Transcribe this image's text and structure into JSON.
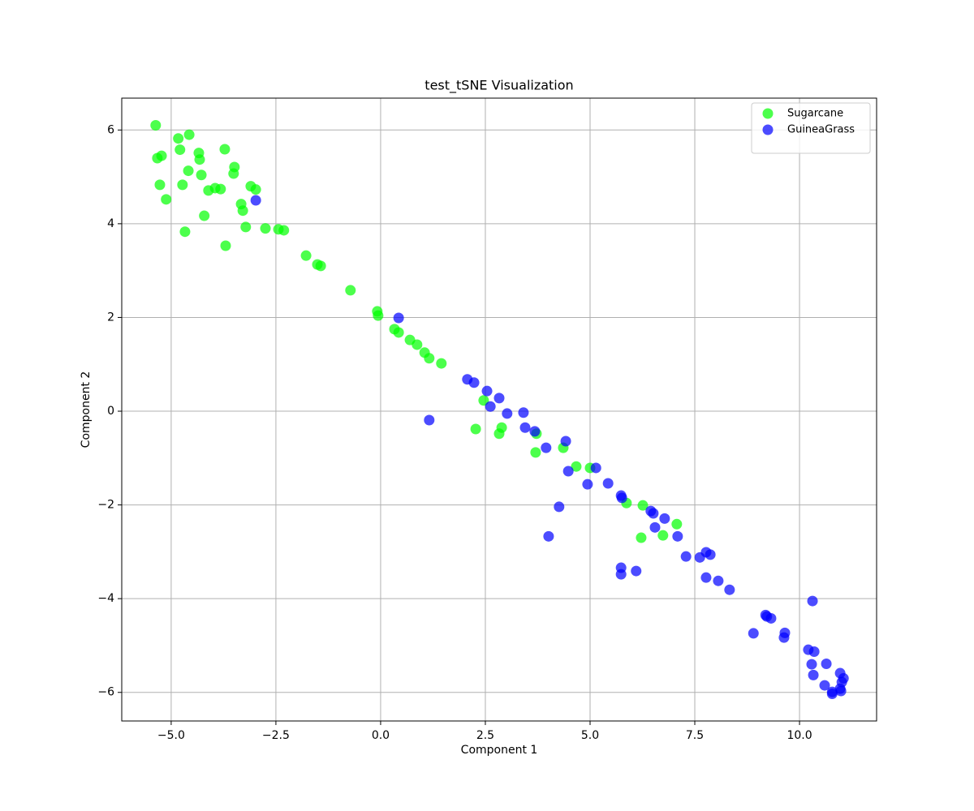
{
  "chart_data": {
    "type": "scatter",
    "title": "test_tSNE Visualization",
    "x_label": "Component 1",
    "y_label": "Component 2",
    "xlim": [
      -6.18,
      11.84
    ],
    "ylim": [
      -6.61,
      6.68
    ],
    "xticks": [
      {
        "value": -5,
        "label": "−5.0"
      },
      {
        "value": -2.5,
        "label": "−2.5"
      },
      {
        "value": 0,
        "label": "0.0"
      },
      2.5,
      {
        "value": 5,
        "label": "5.0"
      },
      7.5,
      {
        "value": 10,
        "label": "10.0"
      }
    ],
    "yticks": [
      {
        "value": -6,
        "label": "−6"
      },
      {
        "value": -4,
        "label": "−4"
      },
      {
        "value": -2,
        "label": "−2"
      },
      0,
      2,
      4,
      6
    ],
    "grid": true,
    "legend": "upper right",
    "series": [
      {
        "name": "Sugarcane",
        "color": "#00ff00",
        "x": [
          -5.37,
          -5.33,
          -5.23,
          -5.27,
          -5.12,
          -4.83,
          -4.79,
          -4.57,
          -4.59,
          -4.73,
          -4.67,
          -4.34,
          -4.32,
          -4.28,
          -4.21,
          -4.11,
          -3.95,
          -3.82,
          -3.72,
          -3.7,
          -3.49,
          -3.51,
          -3.33,
          -3.29,
          -3.22,
          -3.1,
          -2.98,
          -2.75,
          -2.44,
          -2.31,
          -1.78,
          -1.51,
          -1.43,
          -0.72,
          -0.08,
          -0.06,
          0.33,
          0.43,
          0.7,
          0.87,
          1.05,
          1.16,
          1.45,
          2.46,
          2.27,
          2.83,
          2.89,
          3.72,
          3.7,
          4.36,
          4.67,
          5.0,
          5.87,
          6.26,
          6.22,
          6.74,
          7.07
        ],
        "values": [
          6.1,
          5.4,
          5.45,
          4.83,
          4.52,
          5.82,
          5.58,
          5.9,
          5.13,
          4.83,
          3.83,
          5.51,
          5.37,
          5.04,
          4.17,
          4.71,
          4.76,
          4.74,
          5.59,
          3.53,
          5.21,
          5.07,
          4.42,
          4.28,
          3.93,
          4.8,
          4.73,
          3.9,
          3.88,
          3.86,
          3.32,
          3.13,
          3.1,
          2.58,
          2.13,
          2.04,
          1.75,
          1.68,
          1.52,
          1.42,
          1.25,
          1.13,
          1.02,
          0.23,
          -0.38,
          -0.48,
          -0.35,
          -0.48,
          -0.88,
          -0.78,
          -1.18,
          -1.21,
          -1.96,
          -2.01,
          -2.7,
          -2.65,
          -2.41
        ]
      },
      {
        "name": "GuineaGrass",
        "color": "#0000ff",
        "x": [
          -2.98,
          0.43,
          1.16,
          2.07,
          2.23,
          2.54,
          2.62,
          2.83,
          3.02,
          3.41,
          3.45,
          3.68,
          3.95,
          4.42,
          4.26,
          4.01,
          4.48,
          4.94,
          5.14,
          5.43,
          5.74,
          5.76,
          5.74,
          5.74,
          6.1,
          6.45,
          6.51,
          6.55,
          6.78,
          7.09,
          7.29,
          7.62,
          7.77,
          7.87,
          7.77,
          8.06,
          8.33,
          8.9,
          9.19,
          9.22,
          9.32,
          9.63,
          9.65,
          10.31,
          10.21,
          10.35,
          10.29,
          10.33,
          10.64,
          10.6,
          10.78,
          10.78,
          10.97,
          11.05,
          11.01,
          10.99,
          10.97
        ],
        "values": [
          4.5,
          1.99,
          -0.19,
          0.68,
          0.61,
          0.43,
          0.1,
          0.28,
          -0.05,
          -0.03,
          -0.35,
          -0.43,
          -0.78,
          -0.64,
          -2.04,
          -2.67,
          -1.28,
          -1.56,
          -1.21,
          -1.54,
          -1.8,
          -1.85,
          -3.34,
          -3.48,
          -3.41,
          -2.13,
          -2.18,
          -2.48,
          -2.29,
          -2.67,
          -3.1,
          -3.12,
          -3.01,
          -3.06,
          -3.55,
          -3.62,
          -3.81,
          -4.74,
          -4.35,
          -4.38,
          -4.42,
          -4.83,
          -4.73,
          -4.05,
          -5.09,
          -5.13,
          -5.4,
          -5.63,
          -5.39,
          -5.85,
          -5.99,
          -6.03,
          -5.59,
          -5.7,
          -5.78,
          -5.97,
          -5.92
        ]
      }
    ]
  }
}
